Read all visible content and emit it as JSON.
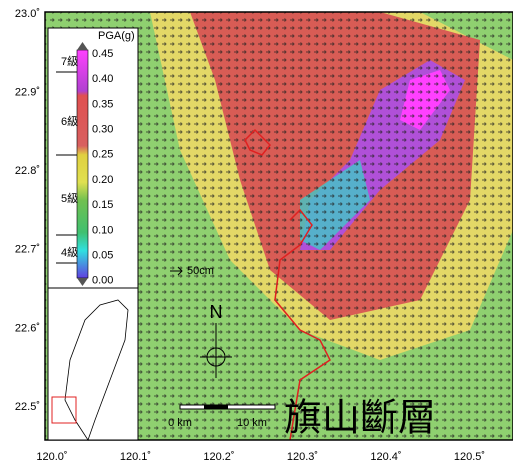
{
  "map": {
    "title": "旗山斷層",
    "lat_labels": [
      "23.0˚",
      "22.9˚",
      "22.8˚",
      "22.7˚",
      "22.6˚",
      "22.5˚"
    ],
    "lon_labels": [
      "120.0˚",
      "120.1˚",
      "120.2˚",
      "120.3˚",
      "120.4˚",
      "120.5˚"
    ],
    "legend": {
      "title": "PGA(g)",
      "ticks": [
        "0.45",
        "0.40",
        "0.35",
        "0.30",
        "0.25",
        "0.20",
        "0.15",
        "0.10",
        "0.05",
        "0.00"
      ],
      "intensity": [
        "7級",
        "6級",
        "5級",
        "4級"
      ]
    },
    "arrow_scale": "50cm",
    "north": "N",
    "scale_bar": [
      "0 km",
      "10 km"
    ]
  }
}
